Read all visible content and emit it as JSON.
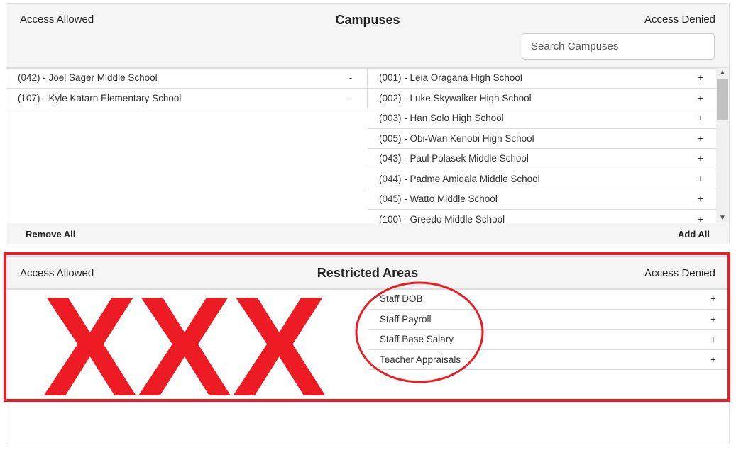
{
  "campuses": {
    "title": "Campuses",
    "allowed_label": "Access Allowed",
    "denied_label": "Access Denied",
    "search_placeholder": "Search Campuses",
    "allowed": [
      {
        "name": "(042) - Joel Sager Middle School",
        "action": "-"
      },
      {
        "name": "(107) - Kyle Katarn Elementary School",
        "action": "-"
      }
    ],
    "denied": [
      {
        "name": "(001) - Leia Oragana High School",
        "action": "+"
      },
      {
        "name": "(002) - Luke Skywalker High School",
        "action": "+"
      },
      {
        "name": "(003) - Han Solo High School",
        "action": "+"
      },
      {
        "name": "(005) - Obi-Wan Kenobi High School",
        "action": "+"
      },
      {
        "name": "(043) - Paul Polasek Middle School",
        "action": "+"
      },
      {
        "name": "(044) - Padme Amidala Middle School",
        "action": "+"
      },
      {
        "name": "(045) - Watto Middle School",
        "action": "+"
      },
      {
        "name": "(100) - Greedo Middle School",
        "action": "+"
      }
    ],
    "remove_all": "Remove All",
    "add_all": "Add All"
  },
  "restricted": {
    "title": "Restricted Areas",
    "allowed_label": "Access Allowed",
    "denied_label": "Access Denied",
    "denied": [
      {
        "name": "Staff DOB",
        "action": "+"
      },
      {
        "name": "Staff Payroll",
        "action": "+"
      },
      {
        "name": "Staff Base Salary",
        "action": "+"
      },
      {
        "name": "Teacher Appraisals",
        "action": "+"
      }
    ]
  },
  "annotation": {
    "text": "XXX",
    "color": "#ed1c24"
  }
}
